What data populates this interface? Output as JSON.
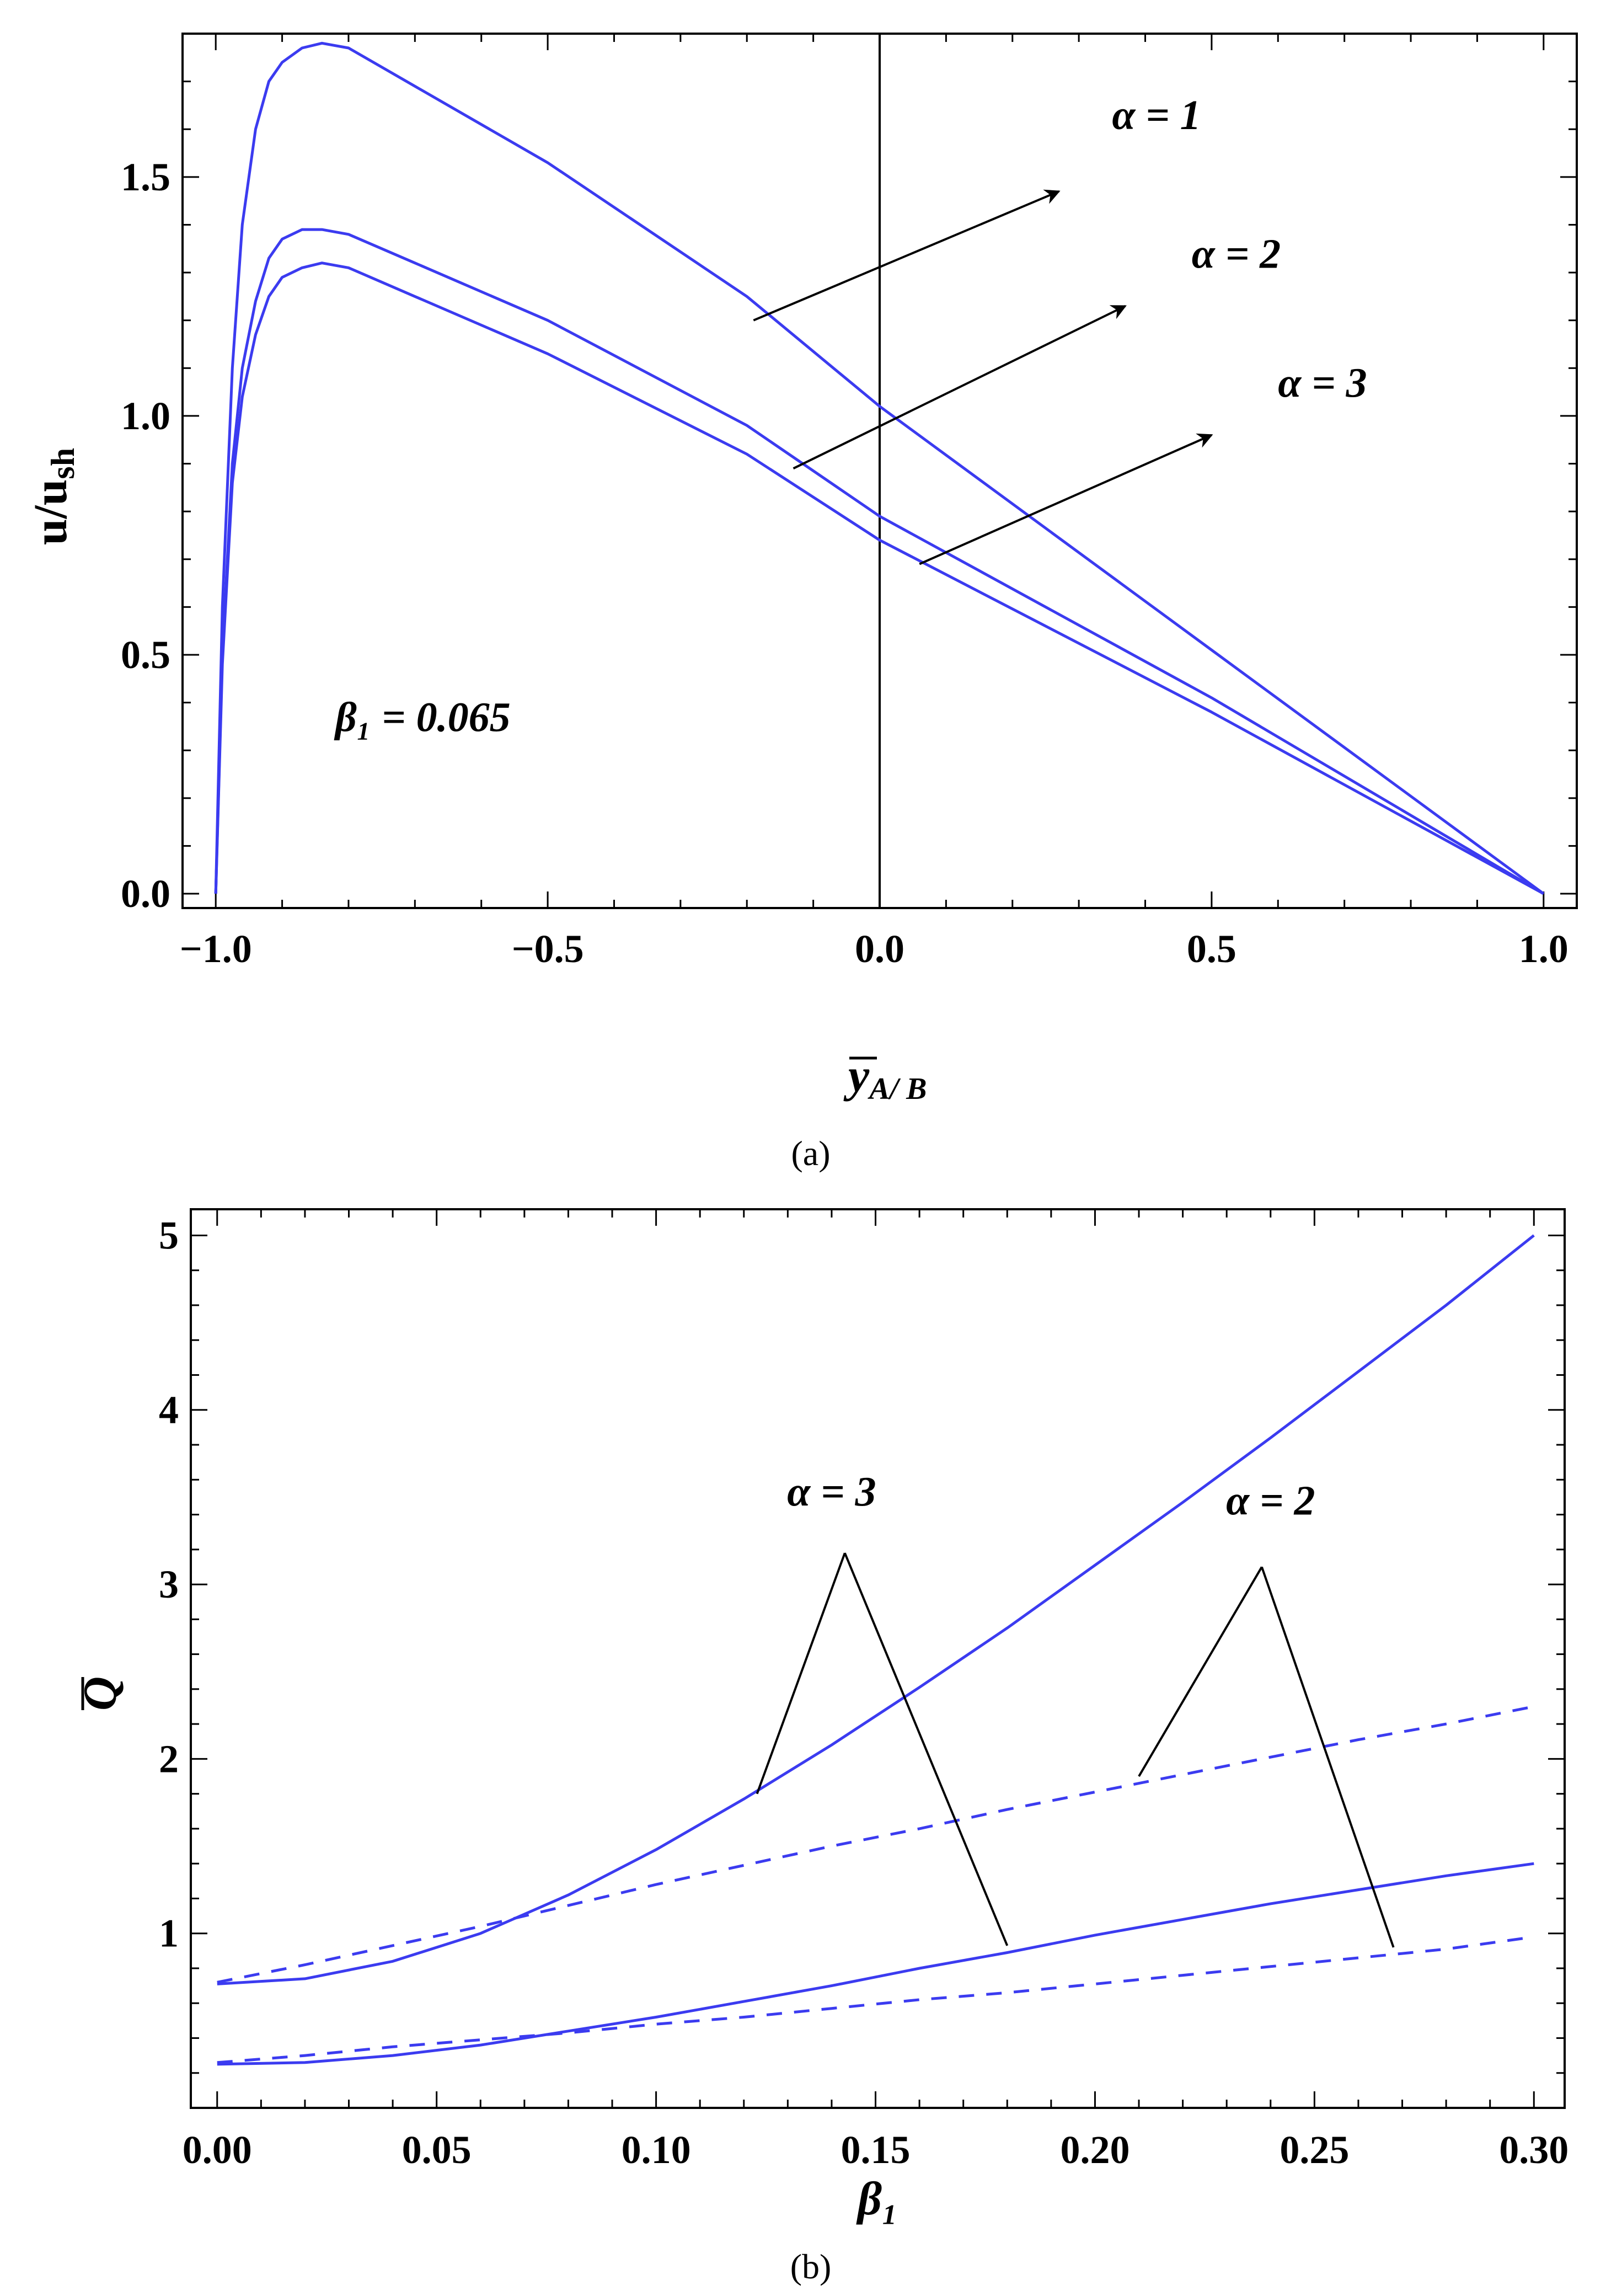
{
  "chart_data": [
    {
      "type": "line",
      "panel_label": "(a)",
      "xlabel": "y",
      "xlabel_sub": "A/ B",
      "ylabel": "u/u",
      "ylabel_sub": "sh",
      "xlim": [
        -1.05,
        1.05
      ],
      "ylim": [
        -0.03,
        1.8
      ],
      "xticks": [
        "−1.0",
        "−0.5",
        "0.0",
        "0.5",
        "1.0"
      ],
      "xtick_values": [
        -1.0,
        -0.5,
        0.0,
        0.5,
        1.0
      ],
      "yticks": [
        "0.0",
        "0.5",
        "1.0",
        "1.5"
      ],
      "ytick_values": [
        0.0,
        0.5,
        1.0,
        1.5
      ],
      "grid": false,
      "line_color": "#3b3bf0",
      "vertical_line_x": 0.0,
      "series": [
        {
          "x": [
            -1.0,
            -0.99,
            -0.975,
            -0.96,
            -0.94,
            -0.92,
            -0.9,
            -0.87,
            -0.84,
            -0.8,
            -0.7,
            -0.5,
            -0.2,
            0.0,
            0.5,
            1.0
          ],
          "y": [
            0.0,
            0.6,
            1.1,
            1.4,
            1.6,
            1.7,
            1.74,
            1.77,
            1.78,
            1.77,
            1.69,
            1.53,
            1.25,
            1.02,
            0.51,
            0.0
          ]
        },
        {
          "x": [
            -1.0,
            -0.99,
            -0.975,
            -0.96,
            -0.94,
            -0.92,
            -0.9,
            -0.87,
            -0.84,
            -0.8,
            -0.7,
            -0.5,
            -0.2,
            0.0,
            0.5,
            1.0
          ],
          "y": [
            0.0,
            0.5,
            0.9,
            1.1,
            1.24,
            1.33,
            1.37,
            1.39,
            1.39,
            1.38,
            1.32,
            1.2,
            0.98,
            0.79,
            0.41,
            0.0
          ]
        },
        {
          "x": [
            -1.0,
            -0.99,
            -0.975,
            -0.96,
            -0.94,
            -0.92,
            -0.9,
            -0.87,
            -0.84,
            -0.8,
            -0.7,
            -0.5,
            -0.2,
            0.0,
            0.5,
            1.0
          ],
          "y": [
            0.0,
            0.48,
            0.86,
            1.04,
            1.17,
            1.25,
            1.29,
            1.31,
            1.32,
            1.31,
            1.25,
            1.13,
            0.92,
            0.74,
            0.38,
            0.0
          ]
        }
      ],
      "annotations": [
        {
          "text": "α = 1",
          "x": 0.35,
          "y": 1.6,
          "arrow_from": [
            -0.19,
            1.2
          ],
          "arrow_to": [
            0.27,
            1.47
          ]
        },
        {
          "text": "α = 2",
          "x": 0.47,
          "y": 1.31,
          "arrow_from": [
            -0.13,
            0.89
          ],
          "arrow_to": [
            0.37,
            1.23
          ]
        },
        {
          "text": "α = 3",
          "x": 0.6,
          "y": 1.04,
          "arrow_from": [
            0.06,
            0.69
          ],
          "arrow_to": [
            0.5,
            0.96
          ]
        },
        {
          "text": "β₁  =  0.065",
          "x": -0.82,
          "y": 0.34
        }
      ]
    },
    {
      "type": "line",
      "panel_label": "(b)",
      "xlabel": "β₁",
      "ylabel": "Q",
      "xlim": [
        -0.006,
        0.307
      ],
      "ylim": [
        0.0,
        5.15
      ],
      "xticks": [
        "0.00",
        "0.05",
        "0.10",
        "0.15",
        "0.20",
        "0.25",
        "0.30"
      ],
      "xtick_values": [
        0.0,
        0.05,
        0.1,
        0.15,
        0.2,
        0.25,
        0.3
      ],
      "yticks": [
        "1",
        "2",
        "3",
        "4",
        "5"
      ],
      "ytick_values": [
        1,
        2,
        3,
        4,
        5
      ],
      "grid": false,
      "line_color": "#3b3bf0",
      "series": [
        {
          "style": "solid",
          "x": [
            0.0,
            0.02,
            0.04,
            0.06,
            0.08,
            0.1,
            0.12,
            0.14,
            0.16,
            0.18,
            0.2,
            0.22,
            0.24,
            0.26,
            0.28,
            0.3
          ],
          "y": [
            0.71,
            0.74,
            0.84,
            1.0,
            1.22,
            1.48,
            1.77,
            2.08,
            2.41,
            2.75,
            3.11,
            3.47,
            3.84,
            4.22,
            4.6,
            5.0
          ]
        },
        {
          "style": "dashed",
          "x": [
            0.0,
            0.02,
            0.04,
            0.06,
            0.08,
            0.1,
            0.12,
            0.14,
            0.16,
            0.18,
            0.2,
            0.22,
            0.24,
            0.26,
            0.28,
            0.3
          ],
          "y": [
            0.72,
            0.82,
            0.93,
            1.04,
            1.16,
            1.28,
            1.39,
            1.5,
            1.6,
            1.71,
            1.81,
            1.91,
            2.01,
            2.11,
            2.2,
            2.3
          ]
        },
        {
          "style": "solid",
          "x": [
            0.0,
            0.02,
            0.04,
            0.06,
            0.08,
            0.1,
            0.12,
            0.14,
            0.16,
            0.18,
            0.2,
            0.22,
            0.24,
            0.26,
            0.28,
            0.3
          ],
          "y": [
            0.25,
            0.26,
            0.3,
            0.36,
            0.44,
            0.52,
            0.61,
            0.7,
            0.8,
            0.89,
            0.99,
            1.08,
            1.17,
            1.25,
            1.33,
            1.4
          ]
        },
        {
          "style": "dashed",
          "x": [
            0.0,
            0.02,
            0.04,
            0.06,
            0.08,
            0.1,
            0.12,
            0.14,
            0.16,
            0.18,
            0.2,
            0.22,
            0.24,
            0.26,
            0.28,
            0.3
          ],
          "y": [
            0.26,
            0.3,
            0.35,
            0.39,
            0.43,
            0.48,
            0.52,
            0.57,
            0.62,
            0.66,
            0.71,
            0.76,
            0.81,
            0.86,
            0.91,
            0.98
          ]
        }
      ],
      "annotations": [
        {
          "text": "α = 3",
          "x": 0.14,
          "y": 3.45,
          "apex": [
            0.143,
            3.18
          ],
          "leg_ends": [
            [
              0.123,
              1.8
            ],
            [
              0.18,
              0.93
            ]
          ]
        },
        {
          "text": "α = 2",
          "x": 0.24,
          "y": 3.4,
          "apex": [
            0.238,
            3.1
          ],
          "leg_ends": [
            [
              0.21,
              1.9
            ],
            [
              0.268,
              0.92
            ]
          ]
        }
      ]
    }
  ]
}
